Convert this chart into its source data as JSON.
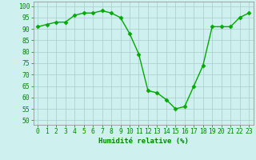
{
  "x": [
    0,
    1,
    2,
    3,
    4,
    5,
    6,
    7,
    8,
    9,
    10,
    11,
    12,
    13,
    14,
    15,
    16,
    17,
    18,
    19,
    20,
    21,
    22,
    23
  ],
  "y": [
    91,
    92,
    93,
    93,
    96,
    97,
    97,
    98,
    97,
    95,
    88,
    79,
    63,
    62,
    59,
    55,
    56,
    65,
    74,
    91,
    91,
    91,
    95,
    97
  ],
  "line_color": "#00aa00",
  "marker": "D",
  "marker_size": 2.5,
  "bg_color": "#cef0ee",
  "grid_color": "#aacccc",
  "xlabel": "Humidité relative (%)",
  "xlabel_color": "#008800",
  "xlabel_fontsize": 6.5,
  "ylabel_ticks": [
    50,
    55,
    60,
    65,
    70,
    75,
    80,
    85,
    90,
    95,
    100
  ],
  "xtick_labels": [
    "0",
    "1",
    "2",
    "3",
    "4",
    "5",
    "6",
    "7",
    "8",
    "9",
    "10",
    "11",
    "12",
    "13",
    "14",
    "15",
    "16",
    "17",
    "18",
    "19",
    "20",
    "21",
    "22",
    "23"
  ],
  "ylim": [
    48,
    102
  ],
  "xlim": [
    -0.5,
    23.5
  ],
  "tick_fontsize": 5.8,
  "tick_color": "#008800"
}
